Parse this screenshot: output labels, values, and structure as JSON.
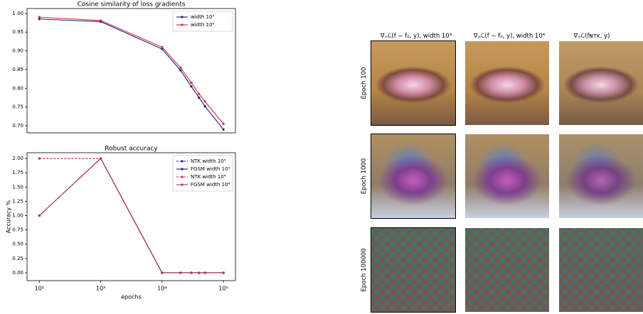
{
  "chart_data": [
    {
      "type": "line",
      "title": "Cosine similarity of loss gradients",
      "log_x": true,
      "legend": "upper right",
      "x": [
        100,
        1000,
        10000,
        20000,
        30000,
        40000,
        50000,
        100000
      ],
      "xlim": [
        63,
        157000
      ],
      "ylim": [
        0.681,
        1.013
      ],
      "yticks": [
        {
          "value": 0.7,
          "label": "0.70"
        },
        {
          "value": 0.75,
          "label": "0.75"
        },
        {
          "value": 0.8,
          "label": "0.80"
        },
        {
          "value": 0.85,
          "label": "0.85"
        },
        {
          "value": 0.9,
          "label": "0.90"
        },
        {
          "value": 0.95,
          "label": "0.95"
        },
        {
          "value": 1.0,
          "label": "1.00"
        }
      ],
      "series": [
        {
          "name": "width 10³",
          "color": "#1b1f7a",
          "linestyle": "-",
          "values": [
            0.985,
            0.978,
            0.905,
            0.848,
            0.805,
            0.775,
            0.752,
            0.69
          ]
        },
        {
          "name": "width 10⁴",
          "color": "#d6273f",
          "linestyle": "-",
          "values": [
            0.99,
            0.981,
            0.91,
            0.855,
            0.815,
            0.785,
            0.765,
            0.705
          ]
        }
      ]
    },
    {
      "type": "line",
      "title": "Robust accuracy",
      "log_x": true,
      "legend": "upper right",
      "xlabel": "epochs",
      "ylabel": "Accuracy %",
      "x": [
        100,
        1000,
        10000,
        20000,
        30000,
        40000,
        50000,
        100000
      ],
      "xlim": [
        63,
        157000
      ],
      "xticks": [
        {
          "value": 100,
          "label": "10²"
        },
        {
          "value": 1000,
          "label": "10³"
        },
        {
          "value": 10000,
          "label": "10⁴"
        },
        {
          "value": 100000,
          "label": "10⁵"
        }
      ],
      "ylim": [
        -0.137,
        2.1
      ],
      "yticks": [
        {
          "value": 0,
          "label": "0.00"
        },
        {
          "value": 0.25,
          "label": "0.25"
        },
        {
          "value": 0.5,
          "label": "0.50"
        },
        {
          "value": 0.75,
          "label": "0.75"
        },
        {
          "value": 1.0,
          "label": "1.00"
        },
        {
          "value": 1.25,
          "label": "1.25"
        },
        {
          "value": 1.5,
          "label": "1.50"
        },
        {
          "value": 1.75,
          "label": "1.75"
        },
        {
          "value": 2.0,
          "label": "2.00"
        }
      ],
      "series": [
        {
          "name": "NTK width 10³",
          "color": "#1b1f7a",
          "linestyle": "--",
          "values": [
            2,
            2,
            0,
            0,
            0,
            0,
            0,
            0
          ]
        },
        {
          "name": "FGSM width 10³",
          "color": "#1b1f7a",
          "linestyle": "-",
          "values": [
            1,
            2,
            0,
            0,
            0,
            0,
            0,
            0
          ]
        },
        {
          "name": "NTK width 10⁴",
          "color": "#d6273f",
          "linestyle": "--",
          "values": [
            2,
            2,
            0,
            0,
            0,
            0,
            0,
            0
          ]
        },
        {
          "name": "FGSM width 10⁴",
          "color": "#b0305a",
          "linestyle": "-",
          "values": [
            1,
            2,
            0,
            0,
            0,
            0,
            0,
            0
          ]
        }
      ]
    }
  ],
  "figure": {
    "column_headers": [
      "∇ₓℒ(f − f₀, y), width 10³",
      "∇ₓℒ(f − f₀, y), width 10⁴",
      "∇ₓℒ(fɴᴛᴋ, y)"
    ],
    "row_labels": [
      "Epoch 100",
      "Epoch 1000",
      "Epoch 100000"
    ]
  }
}
